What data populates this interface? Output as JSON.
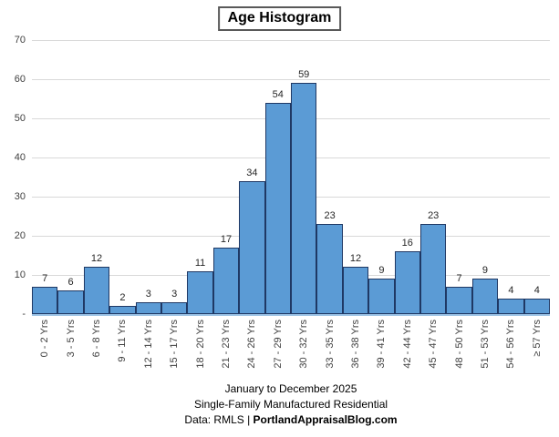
{
  "chart_data": {
    "type": "bar",
    "subtype": "histogram",
    "title": "Age Histogram",
    "categories": [
      "0 - 2 Yrs",
      "3 - 5 Yrs",
      "6 - 8 Yrs",
      "9 - 11 Yrs",
      "12 - 14 Yrs",
      "15 - 17 Yrs",
      "18 - 20 Yrs",
      "21 - 23 Yrs",
      "24 - 26 Yrs",
      "27 - 29 Yrs",
      "30 - 32 Yrs",
      "33 - 35 Yrs",
      "36 - 38 Yrs",
      "39 - 41 Yrs",
      "42 - 44 Yrs",
      "45 - 47 Yrs",
      "48 - 50 Yrs",
      "51 - 53 Yrs",
      "54 - 56 Yrs",
      "≥ 57 Yrs"
    ],
    "values": [
      7,
      6,
      12,
      2,
      3,
      3,
      11,
      17,
      34,
      54,
      59,
      23,
      12,
      9,
      16,
      23,
      7,
      9,
      4,
      4
    ],
    "xlabel": "",
    "ylabel": "",
    "ylim": [
      0,
      70
    ],
    "ytick_interval": 10,
    "ytick_labels_bottom_to_top": [
      "-",
      "10",
      "20",
      "30",
      "40",
      "50",
      "60",
      "70"
    ],
    "grid": "horizontal",
    "legend": "none",
    "data_labels": "above-bars",
    "x_tick_label_rotation_deg": 90,
    "footer": {
      "line1": "January to December 2025",
      "line2": "Single-Family Manufactured Residential",
      "line3_prefix": "Data: RMLS | ",
      "line3_bold": "PortlandAppraisalBlog.com"
    },
    "colors": {
      "bar_fill": "#5B9BD5",
      "bar_border": "#1F3864",
      "gridline": "#D9D9D9",
      "axis_line": "#9DC3E6",
      "label_text": "#262626",
      "tick_text": "#404040"
    }
  }
}
